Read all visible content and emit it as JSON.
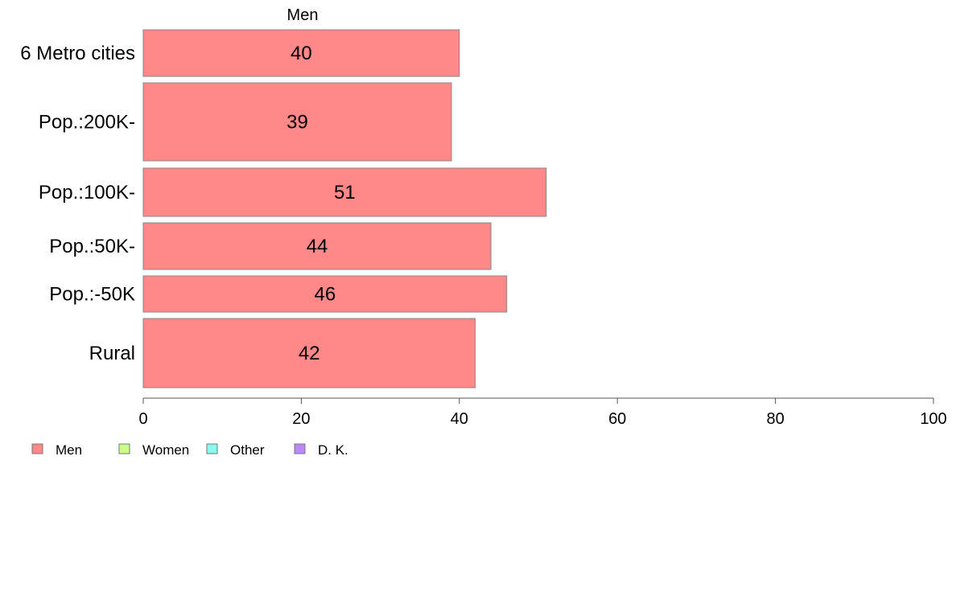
{
  "chart_data": {
    "type": "bar",
    "orientation": "horizontal",
    "stacked": true,
    "top_label": "Men",
    "categories": [
      "6 Metro cities",
      "Pop.:200K-",
      "Pop.:100K-",
      "Pop.:50K-",
      "Pop.:-50K",
      "Rural"
    ],
    "series": [
      {
        "name": "Men",
        "color": "#ff8888",
        "values": [
          40,
          39,
          51,
          44,
          46,
          42
        ]
      },
      {
        "name": "Women",
        "color": "#ccff88",
        "values": [
          null,
          null,
          null,
          null,
          null,
          null
        ]
      },
      {
        "name": "Other",
        "color": "#88ffee",
        "values": [
          null,
          null,
          null,
          null,
          null,
          null
        ]
      },
      {
        "name": "D. K.",
        "color": "#bb88ff",
        "values": [
          null,
          null,
          null,
          null,
          null,
          null
        ]
      }
    ],
    "data_labels": [
      "40",
      "39",
      "51",
      "44",
      "46",
      "42"
    ],
    "xlim": [
      0,
      100
    ],
    "xticks": [
      0,
      20,
      40,
      60,
      80,
      100
    ],
    "xtick_labels": [
      "0",
      "20",
      "40",
      "60",
      "80",
      "100"
    ],
    "grid": false,
    "legend_position": "bottom-left",
    "legend": [
      "Men",
      "Women",
      "Other",
      "D. K."
    ]
  }
}
